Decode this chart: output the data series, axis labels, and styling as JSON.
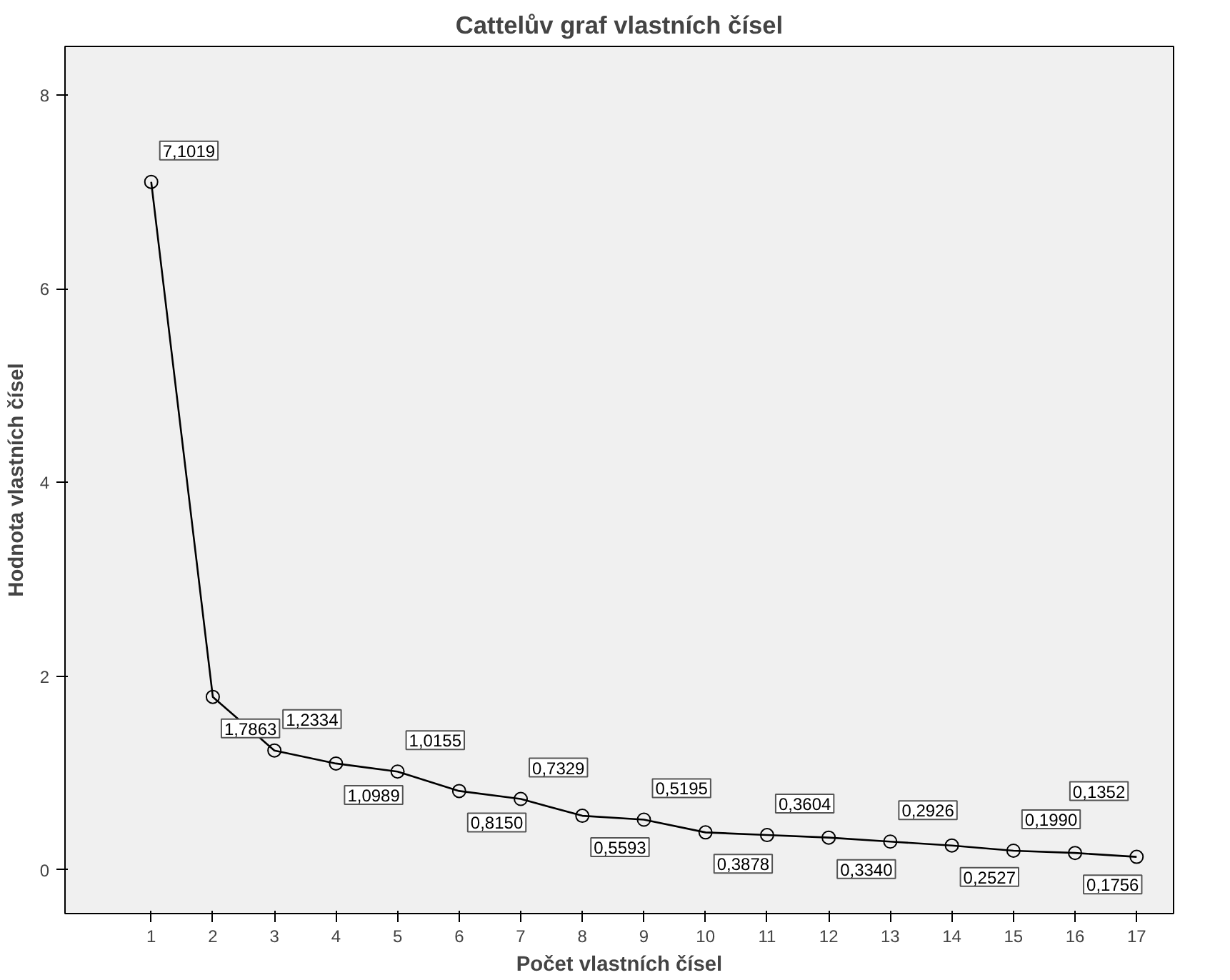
{
  "chart_data": {
    "type": "line",
    "title": "Cattelův graf vlastních čísel",
    "xlabel": "Počet vlastních čísel",
    "ylabel": "Hodnota vlastních čísel",
    "x": [
      1,
      2,
      3,
      4,
      5,
      6,
      7,
      8,
      9,
      10,
      11,
      12,
      13,
      14,
      15,
      16,
      17
    ],
    "series": [
      {
        "color": "#000000",
        "values": [
          7.1019,
          1.7863,
          1.2334,
          1.0989,
          1.0155,
          0.815,
          0.7329,
          0.5593,
          0.5195,
          0.3878,
          0.3604,
          0.334,
          0.2926,
          0.2527,
          0.199,
          0.1756,
          0.1352
        ],
        "value_labels": [
          "7,1019",
          "1,7863",
          "1,2334",
          "1,0989",
          "1,0155",
          "0,8150",
          "0,7329",
          "0,5593",
          "0,5195",
          "0,3878",
          "0,3604",
          "0,3340",
          "0,2926",
          "0,2527",
          "0,1990",
          "0,1756",
          "0,1352"
        ]
      }
    ],
    "xlim": [
      -0.4,
      17.6
    ],
    "ylim": [
      -0.45,
      8.5
    ],
    "xticks": [
      1,
      2,
      3,
      4,
      5,
      6,
      7,
      8,
      9,
      10,
      11,
      12,
      13,
      14,
      15,
      16,
      17
    ],
    "yticks": [
      0,
      2,
      4,
      6,
      8
    ],
    "grid": false,
    "marker": "circle",
    "line_style": "solid"
  }
}
